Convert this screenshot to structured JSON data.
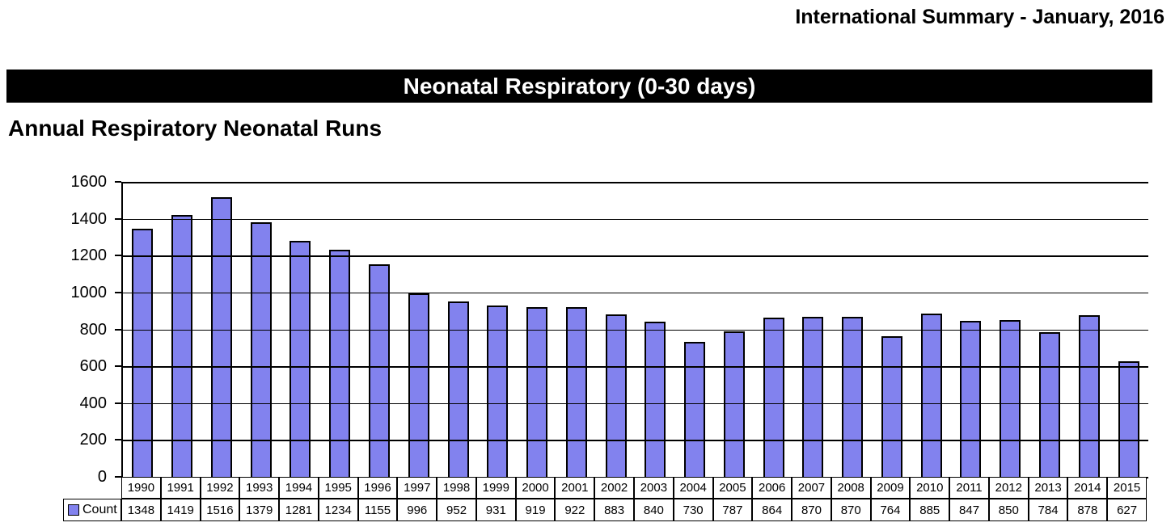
{
  "header": {
    "right_title": "International Summary - January, 2016"
  },
  "banner": {
    "title": "Neonatal Respiratory (0-30 days)"
  },
  "section": {
    "title": "Annual Respiratory Neonatal Runs"
  },
  "chart_data": {
    "type": "bar",
    "title": "Annual Respiratory Neonatal Runs",
    "categories": [
      "1990",
      "1991",
      "1992",
      "1993",
      "1994",
      "1995",
      "1996",
      "1997",
      "1998",
      "1999",
      "2000",
      "2001",
      "2002",
      "2003",
      "2004",
      "2005",
      "2006",
      "2007",
      "2008",
      "2009",
      "2010",
      "2011",
      "2012",
      "2013",
      "2014",
      "2015"
    ],
    "series": [
      {
        "name": "Count",
        "values": [
          1348,
          1419,
          1516,
          1379,
          1281,
          1234,
          1155,
          996,
          952,
          931,
          919,
          922,
          883,
          840,
          730,
          787,
          864,
          870,
          870,
          764,
          885,
          847,
          850,
          784,
          878,
          627
        ]
      }
    ],
    "xlabel": "",
    "ylabel": "",
    "ylim": [
      0,
      1600
    ],
    "yticks": [
      0,
      200,
      400,
      600,
      800,
      1000,
      1200,
      1400,
      1600
    ],
    "grid": true,
    "legend_position": "data-table-left",
    "bar_color": "#8282EE",
    "bar_border_color": "#000000",
    "background_color": "#FFFFFF"
  }
}
